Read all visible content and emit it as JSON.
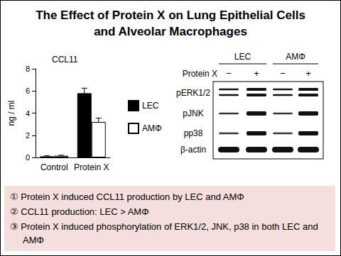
{
  "title": [
    "The Effect of Protein X on Lung Epithelial Cells",
    "and Alveolar Macrophages"
  ],
  "chart_data": {
    "type": "bar",
    "title": "CCL11",
    "y_label": "ng / ml",
    "categories": [
      "Control",
      "Protein X"
    ],
    "series": [
      {
        "name": "LEC",
        "color": "#000000",
        "values": [
          0.1,
          5.8
        ],
        "errors": [
          0.05,
          0.45
        ]
      },
      {
        "name": "AMΦ",
        "color": "#ffffff",
        "values": [
          0.15,
          3.2
        ],
        "errors": [
          0.05,
          0.35
        ]
      }
    ],
    "ylim": [
      0,
      8
    ],
    "yticks": [
      0,
      2,
      4,
      6,
      8
    ],
    "grid": false,
    "legend": "right"
  },
  "blot": {
    "groups": [
      "LEC",
      "AMΦ"
    ],
    "treatment_label": "Protein X",
    "treatments": [
      "−",
      "+",
      "−",
      "+"
    ],
    "rows": [
      "pERK1/2",
      "pJNK",
      "pp38",
      "β-actin"
    ]
  },
  "notes": [
    "① Protein X induced CCL11 production by LEC and AMΦ",
    "② CCL11 production: LEC > AMΦ",
    "③ Protein X induced phosphorylation of ERK1/2, JNK, p38 in both LEC and AMΦ"
  ]
}
